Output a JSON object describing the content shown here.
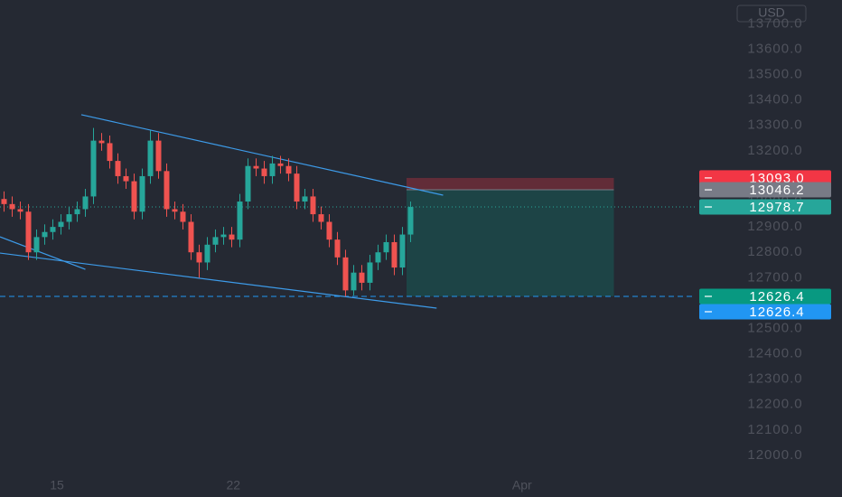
{
  "chart_data": {
    "type": "candlestick",
    "currency": "USD",
    "x": [
      0,
      1,
      2,
      3,
      4,
      5,
      6,
      7,
      8,
      9,
      10,
      11,
      12,
      13,
      14,
      15,
      16,
      17,
      18,
      19,
      20,
      21,
      22,
      23,
      24,
      25,
      26,
      27,
      28,
      29,
      30,
      31,
      32,
      33,
      34,
      35,
      36,
      37,
      38,
      39,
      40,
      41,
      42,
      43,
      44,
      45,
      46,
      47,
      48,
      49,
      50
    ],
    "open": [
      13010,
      12990,
      12970,
      12960,
      12800,
      12860,
      12880,
      12900,
      12920,
      12950,
      12970,
      13020,
      13240,
      13230,
      13160,
      13100,
      13080,
      12960,
      13100,
      13240,
      13120,
      12970,
      12960,
      12920,
      12800,
      12760,
      12830,
      12860,
      12870,
      12850,
      13000,
      13140,
      13130,
      13100,
      13150,
      13140,
      13110,
      13000,
      13020,
      12950,
      12920,
      12850,
      12780,
      12650,
      12720,
      12680,
      12760,
      12800,
      12840,
      12740,
      12870
    ],
    "high": [
      13040,
      13020,
      13000,
      12990,
      12890,
      12910,
      12930,
      12950,
      12980,
      13000,
      13050,
      13290,
      13270,
      13260,
      13190,
      13130,
      13110,
      13130,
      13280,
      13270,
      13150,
      13000,
      12990,
      12950,
      12830,
      12860,
      12890,
      12900,
      12900,
      13030,
      13170,
      13170,
      13160,
      13180,
      13180,
      13170,
      13140,
      13050,
      13050,
      12980,
      12950,
      12880,
      12810,
      12750,
      12750,
      12790,
      12830,
      12870,
      12870,
      12900,
      13000
    ],
    "low": [
      12960,
      12940,
      12930,
      12770,
      12770,
      12830,
      12850,
      12870,
      12890,
      12920,
      12940,
      12990,
      13200,
      13130,
      13070,
      13050,
      12930,
      12930,
      13070,
      13090,
      12940,
      12930,
      12890,
      12770,
      12700,
      12730,
      12800,
      12830,
      12820,
      12820,
      12970,
      13100,
      13070,
      13070,
      13110,
      13080,
      12970,
      12970,
      12920,
      12890,
      12820,
      12750,
      12626.4,
      12630,
      12650,
      12650,
      12730,
      12770,
      12710,
      12710,
      12840
    ],
    "close": [
      12990,
      12970,
      12960,
      12800,
      12860,
      12880,
      12900,
      12920,
      12950,
      12970,
      13020,
      13240,
      13230,
      13160,
      13100,
      13080,
      12960,
      13100,
      13240,
      13120,
      12970,
      12960,
      12920,
      12800,
      12760,
      12830,
      12860,
      12870,
      12850,
      13000,
      13140,
      13130,
      13100,
      13150,
      13140,
      13110,
      13000,
      13020,
      12950,
      12920,
      12850,
      12780,
      12650,
      12720,
      12680,
      12760,
      12800,
      12840,
      12740,
      12870,
      12978.7
    ],
    "up_color": "#26a69a",
    "down_color": "#ef5350",
    "xlim": [
      -0.5,
      85.06
    ],
    "ylim": [
      11836,
      13794
    ],
    "xticks": [
      {
        "value": 6.5,
        "label": "15"
      },
      {
        "value": 28.2,
        "label": "22"
      },
      {
        "value": 63.7,
        "label": "Apr"
      }
    ],
    "yticks": [
      {
        "value": 12000,
        "label": "12000.0"
      },
      {
        "value": 12100,
        "label": "12100.0"
      },
      {
        "value": 12200,
        "label": "12200.0"
      },
      {
        "value": 12300,
        "label": "12300.0"
      },
      {
        "value": 12400,
        "label": "12400.0"
      },
      {
        "value": 12500,
        "label": "12500.0"
      },
      {
        "value": 12600,
        "label": "12600.0"
      },
      {
        "value": 12700,
        "label": "12700.0"
      },
      {
        "value": 12800,
        "label": "12800.0"
      },
      {
        "value": 12900,
        "label": "12900.0"
      },
      {
        "value": 13000,
        "label": "13000.0"
      },
      {
        "value": 13100,
        "label": "13100.0"
      },
      {
        "value": 13200,
        "label": "13200.0"
      },
      {
        "value": 13300,
        "label": "13300.0"
      },
      {
        "value": 13400,
        "label": "13400.0"
      },
      {
        "value": 13500,
        "label": "13500.0"
      },
      {
        "value": 13600,
        "label": "13600.0"
      },
      {
        "value": 13700,
        "label": "13700.0"
      }
    ],
    "trend_lines": [
      {
        "x": [
          9.5,
          54
        ],
        "y": [
          13342,
          13025
        ],
        "color": "#3d9be9"
      },
      {
        "x": [
          -0.5,
          53.2
        ],
        "y": [
          12797,
          12580
        ],
        "color": "#3d9be9"
      },
      {
        "x": [
          -0.5,
          10
        ],
        "y": [
          12861,
          12733
        ],
        "color": "#3d9be9"
      }
    ],
    "position": {
      "x": [
        49.5,
        75
      ],
      "stop": {
        "value": 13093,
        "label": "13093.0",
        "color": "#f23645"
      },
      "entry": {
        "value": 13046.2,
        "label": "13046.2",
        "color": "#787b86"
      },
      "target": {
        "value": 12626.4,
        "label": "12626.4",
        "color": "#089981"
      }
    },
    "last_price": {
      "value": 12978.7,
      "label": "12978.7",
      "color": "#26a69a"
    },
    "alert_line": {
      "value": 12626.4,
      "label": "12626.4",
      "color": "#2196f3"
    }
  }
}
